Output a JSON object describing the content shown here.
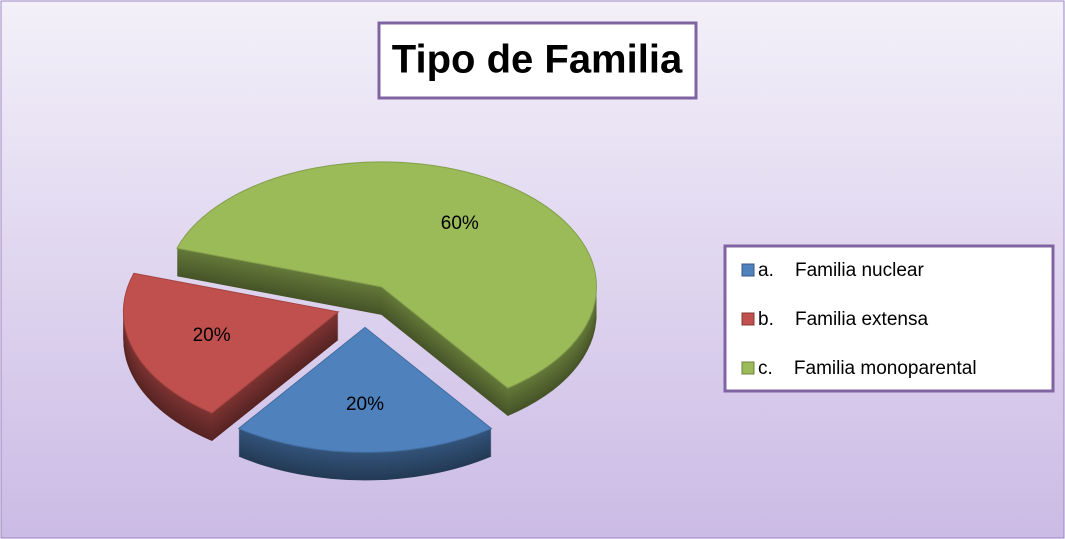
{
  "chart_data": {
    "type": "pie",
    "title": "Tipo de Familia",
    "categories": [
      "a.    Familia nuclear",
      "b.    Familia extensa",
      "c.    Familia monoparental"
    ],
    "values": [
      20,
      20,
      60
    ],
    "value_labels": [
      "20%",
      "20%",
      "60%"
    ],
    "colors": [
      "#4f81bd",
      "#c0504d",
      "#9bbb59"
    ],
    "legend": "right"
  }
}
